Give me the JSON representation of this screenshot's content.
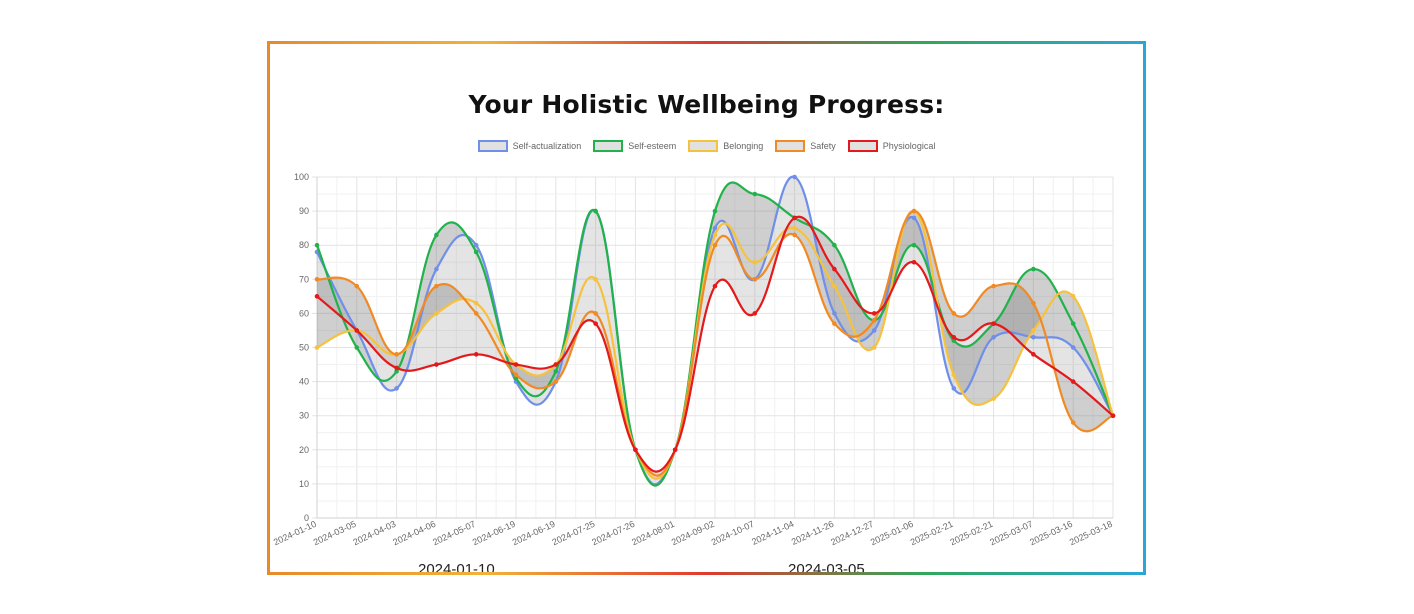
{
  "chart_data": {
    "type": "line",
    "title": "Your Holistic Wellbeing Progress:",
    "x": [
      "2024-01-10",
      "2024-03-05",
      "2024-04-03",
      "2024-04-06",
      "2024-05-07",
      "2024-06-19",
      "2024-06-19",
      "2024-07-25",
      "2024-07-26",
      "2024-08-01",
      "2024-09-02",
      "2024-10-07",
      "2024-11-04",
      "2024-11-26",
      "2024-12-27",
      "2025-01-06",
      "2025-02-21",
      "2025-02-21",
      "2025-03-07",
      "2025-03-16",
      "2025-03-18"
    ],
    "ylim": [
      0,
      100
    ],
    "yticks": [
      0,
      10,
      20,
      30,
      40,
      50,
      60,
      70,
      80,
      90,
      100
    ],
    "grid": true,
    "legend_position": "top-center",
    "series": [
      {
        "name": "Self-actualization",
        "color": "#6f8fe8",
        "values": [
          78,
          55,
          38,
          73,
          80,
          40,
          40,
          90,
          20,
          20,
          85,
          70,
          100,
          60,
          55,
          88,
          38,
          53,
          53,
          50,
          30
        ]
      },
      {
        "name": "Self-esteem",
        "color": "#21b24b",
        "values": [
          80,
          50,
          43,
          83,
          78,
          41,
          43,
          90,
          20,
          20,
          90,
          95,
          88,
          80,
          58,
          80,
          52,
          57,
          73,
          57,
          30
        ]
      },
      {
        "name": "Belonging",
        "color": "#f6c23e",
        "values": [
          50,
          55,
          48,
          60,
          63,
          45,
          45,
          70,
          20,
          20,
          83,
          75,
          85,
          68,
          50,
          90,
          42,
          35,
          55,
          65,
          30
        ]
      },
      {
        "name": "Safety",
        "color": "#f08a24",
        "values": [
          70,
          68,
          48,
          68,
          60,
          42,
          40,
          60,
          20,
          20,
          80,
          70,
          83,
          57,
          58,
          90,
          60,
          68,
          63,
          28,
          30
        ]
      },
      {
        "name": "Physiological",
        "color": "#e3191b",
        "values": [
          65,
          55,
          44,
          45,
          48,
          45,
          45,
          57,
          20,
          20,
          68,
          60,
          88,
          73,
          60,
          75,
          53,
          57,
          48,
          40,
          30
        ]
      }
    ]
  },
  "footer_labels": [
    "2024-01-10",
    "2024-03-05"
  ]
}
